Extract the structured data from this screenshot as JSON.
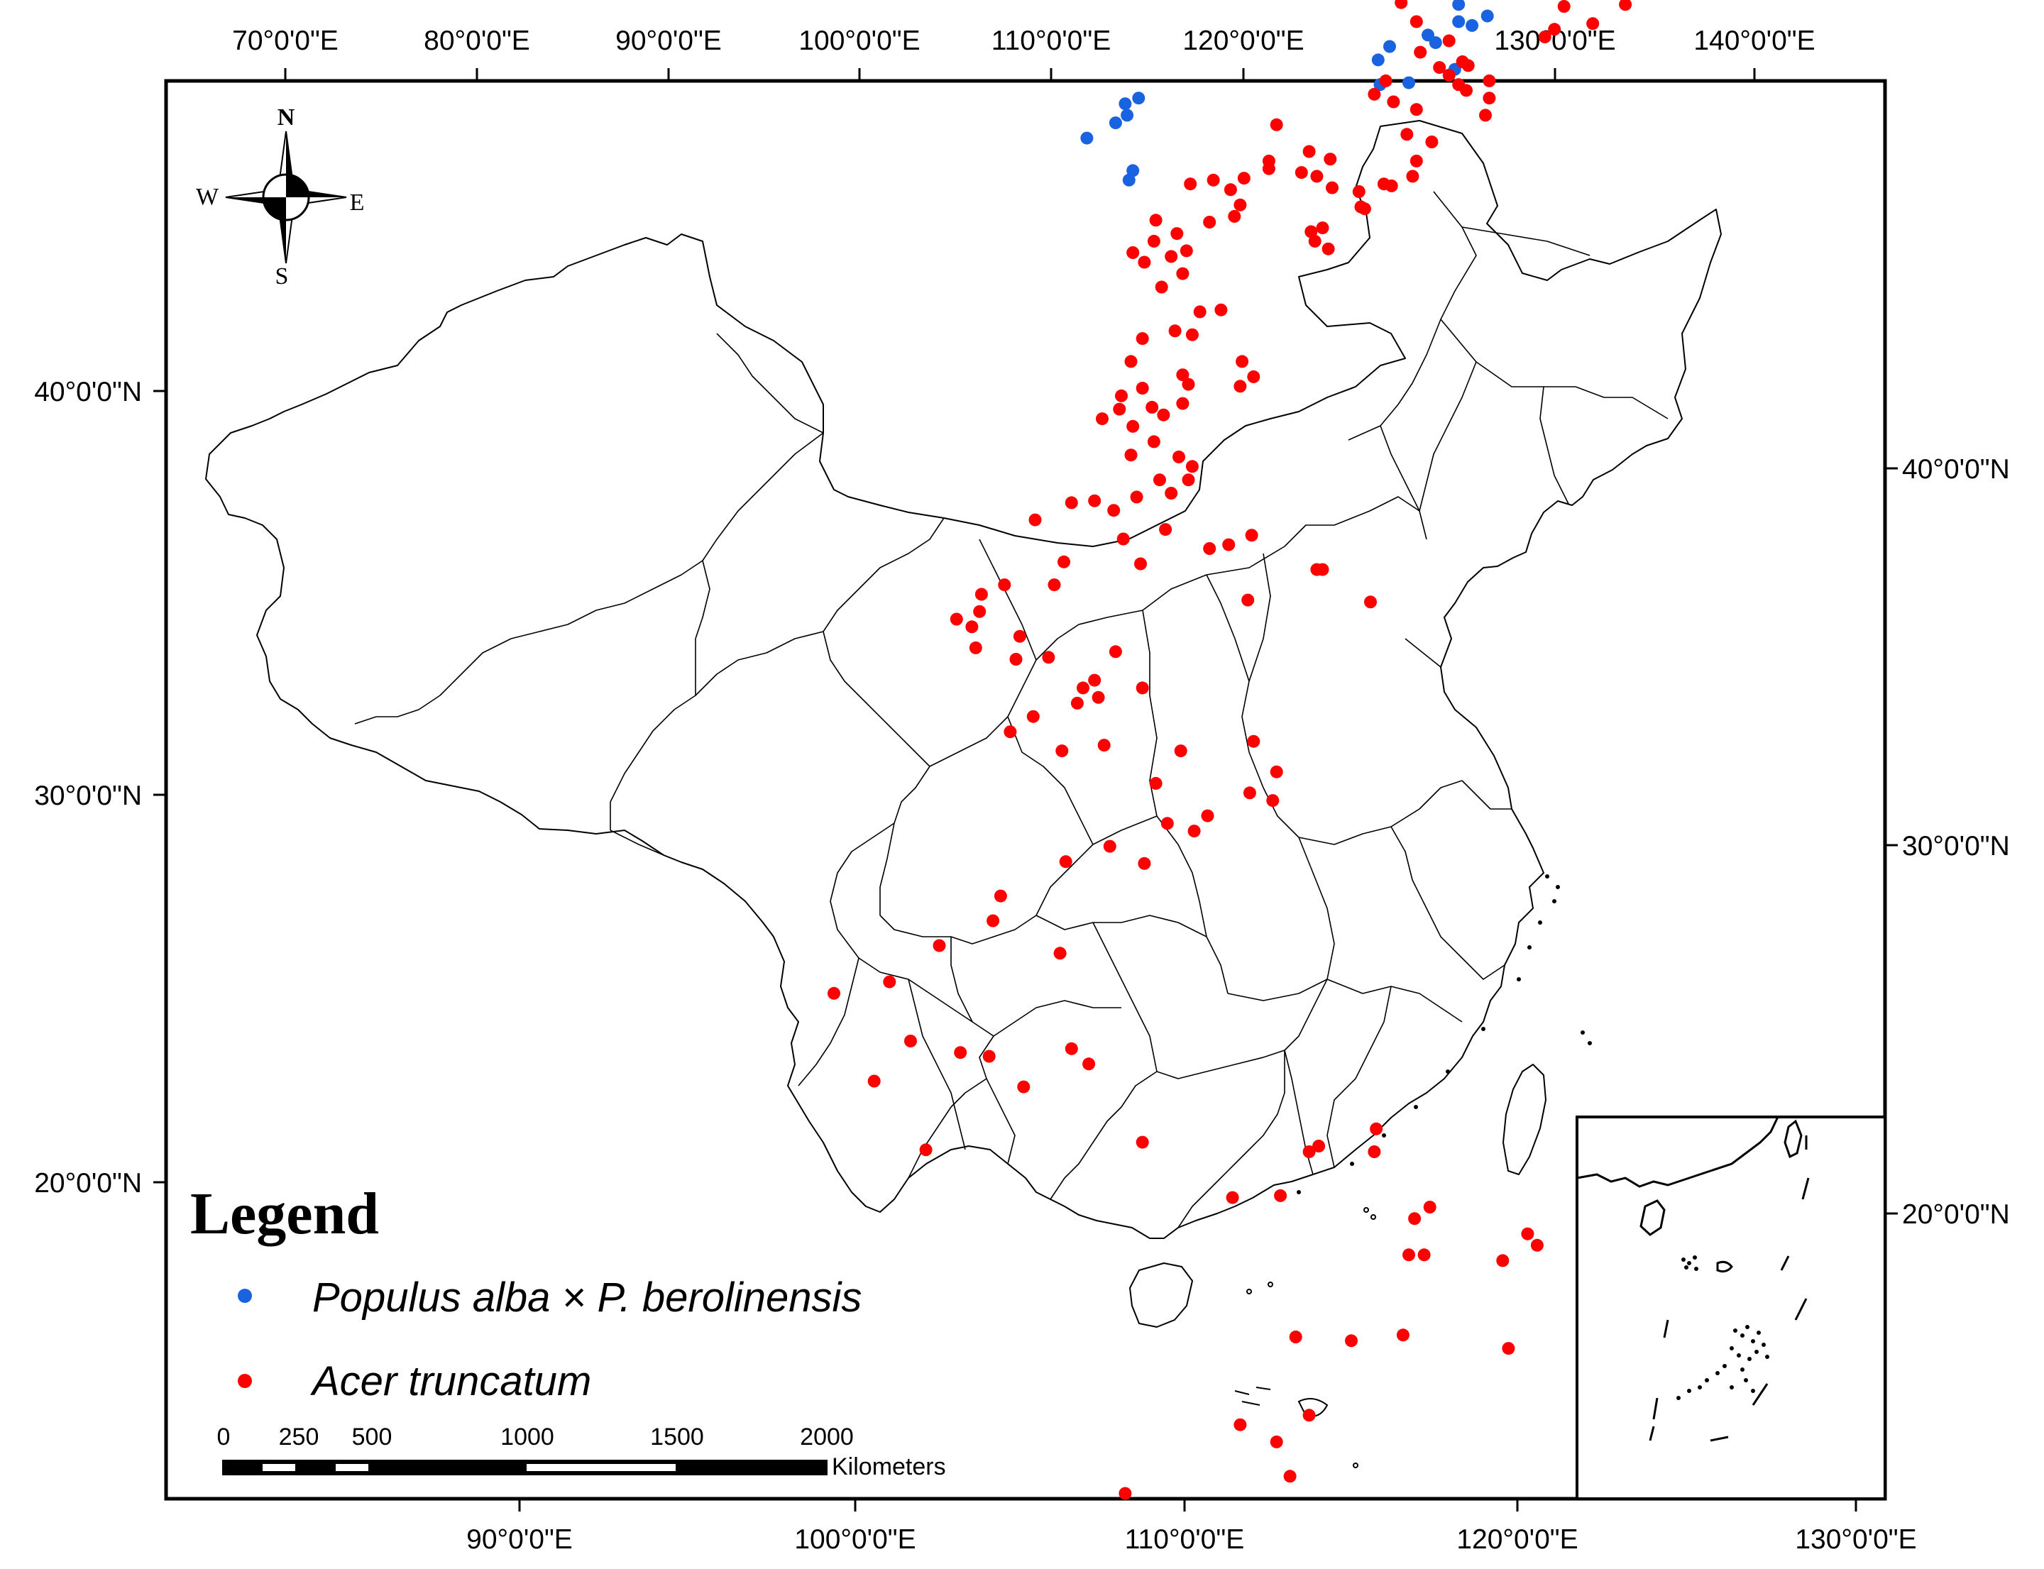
{
  "top_axis_labels": [
    "70°0'0\"E",
    "80°0'0\"E",
    "90°0'0\"E",
    "100°0'0\"E",
    "110°0'0\"E",
    "120°0'0\"E",
    "130°0'0\"E",
    "140°0'0\"E"
  ],
  "bottom_axis_labels": [
    "90°0'0\"E",
    "100°0'0\"E",
    "110°0'0\"E",
    "120°0'0\"E",
    "130°0'0\"E"
  ],
  "left_axis_labels": [
    "40°0'0\"N",
    "30°0'0\"N",
    "20°0'0\"N"
  ],
  "right_axis_labels": [
    "40°0'0\"N",
    "30°0'0\"N",
    "20°0'0\"N"
  ],
  "compass": {
    "n": "N",
    "s": "S",
    "e": "E",
    "w": "W"
  },
  "legend": {
    "title": "Legend",
    "items": [
      {
        "label": "Populus alba × P. berolinensis",
        "color": "#1a63e0"
      },
      {
        "label": "Acer truncatum",
        "color": "#ff0000"
      }
    ]
  },
  "scale_bar": {
    "ticks": [
      "0",
      "250",
      "500",
      "1000",
      "1500",
      "2000"
    ],
    "unit": "Kilometers"
  },
  "series": [
    {
      "name": "Populus alba × P. berolinensis",
      "color": "#1a63e0",
      "points": [
        [
          127.3,
          47.6
        ],
        [
          126.1,
          46.9
        ],
        [
          129.0,
          46.4
        ],
        [
          128.4,
          45.6
        ],
        [
          128.9,
          45.9
        ],
        [
          129.7,
          45.5
        ],
        [
          130.4,
          45.9
        ],
        [
          130.8,
          44.9
        ],
        [
          129.2,
          44.4
        ],
        [
          129.7,
          44.3
        ],
        [
          128.6,
          44.0
        ],
        [
          130.2,
          43.4
        ],
        [
          131.1,
          42.4
        ],
        [
          131.8,
          42.1
        ],
        [
          131.9,
          42.3
        ],
        [
          132.6,
          42.5
        ],
        [
          131.2,
          41.4
        ],
        [
          132.7,
          40.8
        ],
        [
          131.2,
          40.5
        ],
        [
          131.9,
          40.3
        ],
        [
          130.0,
          39.4
        ],
        [
          129.6,
          39.8
        ],
        [
          127.6,
          39.2
        ],
        [
          136.6,
          45.3
        ],
        [
          138.1,
          46.8
        ],
        [
          131.0,
          38.0
        ],
        [
          127.0,
          38.5
        ],
        [
          127.1,
          37.2
        ],
        [
          128.6,
          37.3
        ],
        [
          114.5,
          36.5
        ],
        [
          113.8,
          36.2
        ],
        [
          113.9,
          35.6
        ],
        [
          113.3,
          35.2
        ],
        [
          111.8,
          34.4
        ],
        [
          114.0,
          32.2
        ],
        [
          114.2,
          32.7
        ]
      ]
    },
    {
      "name": "Acer truncatum",
      "color": "#ff0000",
      "points": [
        [
          89.5,
          43.6
        ],
        [
          90.3,
          42.5
        ],
        [
          123.3,
          48.3
        ],
        [
          135.8,
          45.3
        ],
        [
          136.7,
          41.3
        ],
        [
          138.2,
          40.4
        ],
        [
          136.2,
          40.1
        ],
        [
          135.7,
          39.7
        ],
        [
          139.9,
          41.4
        ],
        [
          128.2,
          41.5
        ],
        [
          129.0,
          40.5
        ],
        [
          129.2,
          38.9
        ],
        [
          130.7,
          39.5
        ],
        [
          131.4,
          38.4
        ],
        [
          131.7,
          38.2
        ],
        [
          130.2,
          38.1
        ],
        [
          127.4,
          37.4
        ],
        [
          126.8,
          36.7
        ],
        [
          127.8,
          36.3
        ],
        [
          130.7,
          37.7
        ],
        [
          131.2,
          37.2
        ],
        [
          131.6,
          36.9
        ],
        [
          132.8,
          37.4
        ],
        [
          132.8,
          36.5
        ],
        [
          132.6,
          35.6
        ],
        [
          129.0,
          35.9
        ],
        [
          128.5,
          34.6
        ],
        [
          129.0,
          33.2
        ],
        [
          129.8,
          34.2
        ],
        [
          128.8,
          32.4
        ],
        [
          126.0,
          31.6
        ],
        [
          124.6,
          31.8
        ],
        [
          124.5,
          33.3
        ],
        [
          123.8,
          32.4
        ],
        [
          123.0,
          32.6
        ],
        [
          120.0,
          32.3
        ],
        [
          119.3,
          31.7
        ],
        [
          118.4,
          32.2
        ],
        [
          121.3,
          33.2
        ],
        [
          121.3,
          32.8
        ],
        [
          121.7,
          35.1
        ],
        [
          123.4,
          33.7
        ],
        [
          127.3,
          32.0
        ],
        [
          127.7,
          31.9
        ],
        [
          126.1,
          30.8
        ],
        [
          126.3,
          30.7
        ],
        [
          123.5,
          29.5
        ],
        [
          123.7,
          29.0
        ],
        [
          124.1,
          29.7
        ],
        [
          124.4,
          28.6
        ],
        [
          117.2,
          32.0
        ],
        [
          118.2,
          30.0
        ],
        [
          119.5,
          30.3
        ],
        [
          119.8,
          30.9
        ],
        [
          116.5,
          29.4
        ],
        [
          117.0,
          28.5
        ],
        [
          115.4,
          30.1
        ],
        [
          115.3,
          29.0
        ],
        [
          116.2,
          28.2
        ],
        [
          114.2,
          28.4
        ],
        [
          114.8,
          27.9
        ],
        [
          116.8,
          27.3
        ],
        [
          115.7,
          26.6
        ],
        [
          118.8,
          25.4
        ],
        [
          117.7,
          25.3
        ],
        [
          116.4,
          24.3
        ],
        [
          114.7,
          23.9
        ],
        [
          117.3,
          24.1
        ],
        [
          119.9,
          22.7
        ],
        [
          114.1,
          22.7
        ],
        [
          116.8,
          22.0
        ],
        [
          120.5,
          21.9
        ],
        [
          117.1,
          21.5
        ],
        [
          119.8,
          21.4
        ],
        [
          114.7,
          21.3
        ],
        [
          113.6,
          20.9
        ],
        [
          116.8,
          20.5
        ],
        [
          115.2,
          20.3
        ],
        [
          113.5,
          20.2
        ],
        [
          115.8,
          19.9
        ],
        [
          114.2,
          19.3
        ],
        [
          112.6,
          19.7
        ],
        [
          115.3,
          18.5
        ],
        [
          114.1,
          17.8
        ],
        [
          116.6,
          17.7
        ],
        [
          117.3,
          17.2
        ],
        [
          115.6,
          16.5
        ],
        [
          117.1,
          16.5
        ],
        [
          114.4,
          15.6
        ],
        [
          116.2,
          15.8
        ],
        [
          112.2,
          15.4
        ],
        [
          113.2,
          14.9
        ],
        [
          111.0,
          15.3
        ],
        [
          115.9,
          13.9
        ],
        [
          113.7,
          13.4
        ],
        [
          114.6,
          12.1
        ],
        [
          118.2,
          12.9
        ],
        [
          119.2,
          13.1
        ],
        [
          120.2,
          10.2
        ],
        [
          120.4,
          13.6
        ],
        [
          123.8,
          11.8
        ],
        [
          124.1,
          11.8
        ],
        [
          126.6,
          10.1
        ],
        [
          109.1,
          14.4
        ],
        [
          110.6,
          12.2
        ],
        [
          110.1,
          11.0
        ],
        [
          107.5,
          11.0
        ],
        [
          106.3,
          10.5
        ],
        [
          106.2,
          9.6
        ],
        [
          105.0,
          9.2
        ],
        [
          105.8,
          8.8
        ],
        [
          106.0,
          7.7
        ],
        [
          108.3,
          8.3
        ],
        [
          108.1,
          7.1
        ],
        [
          109.8,
          7.2
        ],
        [
          113.3,
          7.5
        ],
        [
          112.2,
          6.0
        ],
        [
          111.6,
          5.6
        ],
        [
          112.4,
          5.1
        ],
        [
          114.7,
          5.6
        ],
        [
          111.3,
          4.8
        ],
        [
          109.0,
          4.1
        ],
        [
          107.8,
          3.3
        ],
        [
          110.5,
          2.3
        ],
        [
          112.7,
          2.6
        ],
        [
          116.7,
          2.3
        ],
        [
          120.5,
          2.8
        ],
        [
          121.7,
          1.2
        ],
        [
          120.3,
          0.1
        ],
        [
          121.5,
          -0.3
        ],
        [
          118.1,
          -1.1
        ],
        [
          115.4,
          0.6
        ],
        [
          116.0,
          -1.5
        ],
        [
          117.4,
          -1.9
        ],
        [
          113.0,
          -2.7
        ],
        [
          110.7,
          -3.5
        ],
        [
          114.8,
          -3.6
        ],
        [
          107.3,
          -5.3
        ],
        [
          106.9,
          -6.6
        ],
        [
          110.4,
          -8.3
        ],
        [
          104.1,
          -7.9
        ],
        [
          101.5,
          -9.8
        ],
        [
          98.6,
          -10.4
        ],
        [
          102.6,
          -12.9
        ],
        [
          111.0,
          -13.3
        ],
        [
          111.9,
          -14.1
        ],
        [
          105.2,
          -13.5
        ],
        [
          106.7,
          -13.7
        ],
        [
          100.7,
          -15.0
        ],
        [
          108.5,
          -15.3
        ],
        [
          103.4,
          -18.6
        ],
        [
          114.7,
          -18.2
        ],
        [
          123.4,
          -18.7
        ],
        [
          123.9,
          -18.4
        ],
        [
          126.8,
          -18.7
        ],
        [
          126.9,
          -17.5
        ],
        [
          119.4,
          -21.1
        ],
        [
          121.9,
          -21.0
        ],
        [
          129.7,
          -21.6
        ],
        [
          128.9,
          -22.2
        ],
        [
          128.6,
          -24.1
        ],
        [
          129.4,
          -24.1
        ],
        [
          135.3,
          -23.6
        ],
        [
          134.8,
          -23.0
        ],
        [
          133.5,
          -24.4
        ],
        [
          128.3,
          -28.3
        ],
        [
          125.6,
          -28.6
        ],
        [
          122.7,
          -28.4
        ],
        [
          133.8,
          -29.0
        ],
        [
          123.4,
          -32.5
        ],
        [
          119.8,
          -33.0
        ],
        [
          121.7,
          -33.9
        ],
        [
          122.4,
          -35.7
        ],
        [
          113.8,
          -36.6
        ]
      ]
    }
  ]
}
